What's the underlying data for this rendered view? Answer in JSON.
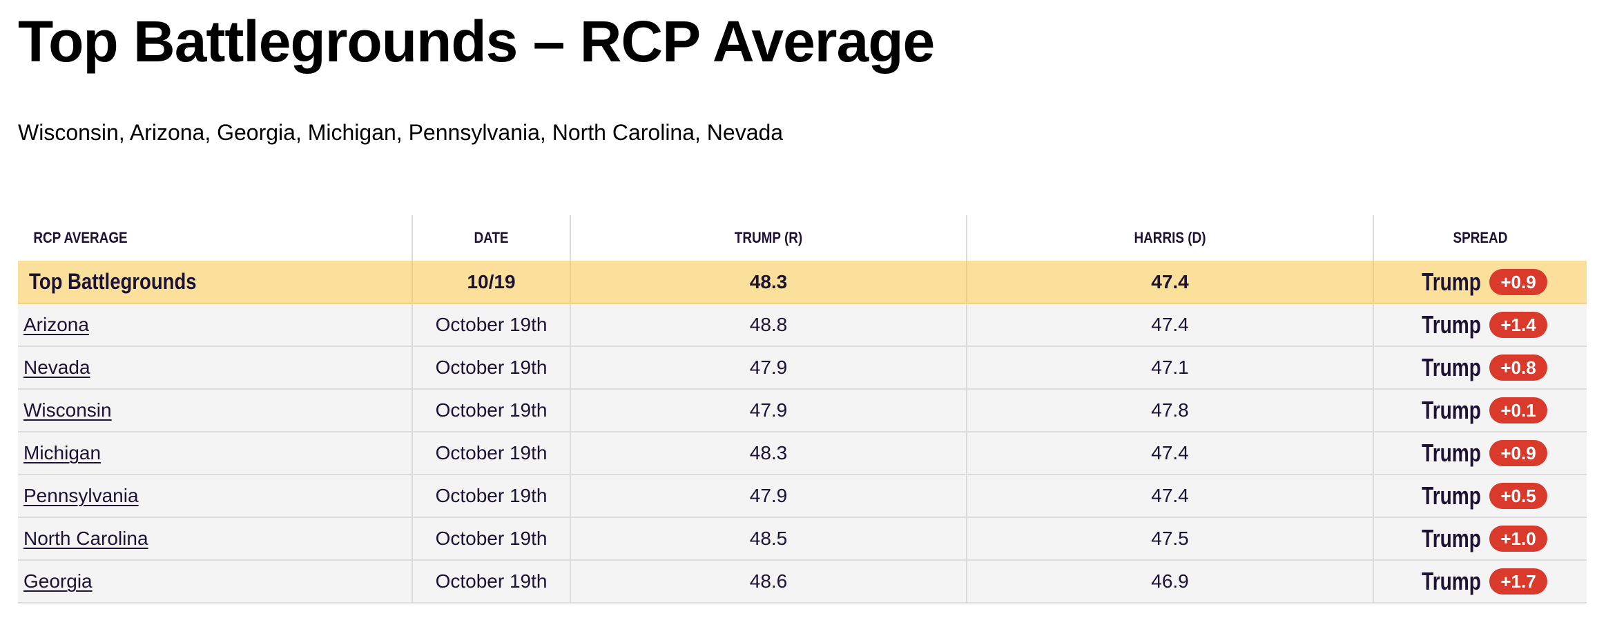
{
  "page": {
    "title": "Top Battlegrounds – RCP Average",
    "subtitle": "Wisconsin, Arizona, Georgia, Michigan, Pennsylvania, North Carolina, Nevada"
  },
  "table": {
    "headers": [
      "RCP AVERAGE",
      "DATE",
      "TRUMP (R)",
      "HARRIS (D)",
      "SPREAD"
    ],
    "average": {
      "label": "Top Battlegrounds",
      "date": "10/19",
      "trump": "48.3",
      "harris": "47.4",
      "spread_leader": "Trump",
      "spread_value": "+0.9"
    },
    "rows": [
      {
        "state": "Arizona",
        "date": "October 19th",
        "trump": "48.8",
        "harris": "47.4",
        "spread_leader": "Trump",
        "spread_value": "+1.4"
      },
      {
        "state": "Nevada",
        "date": "October 19th",
        "trump": "47.9",
        "harris": "47.1",
        "spread_leader": "Trump",
        "spread_value": "+0.8"
      },
      {
        "state": "Wisconsin",
        "date": "October 19th",
        "trump": "47.9",
        "harris": "47.8",
        "spread_leader": "Trump",
        "spread_value": "+0.1"
      },
      {
        "state": "Michigan",
        "date": "October 19th",
        "trump": "48.3",
        "harris": "47.4",
        "spread_leader": "Trump",
        "spread_value": "+0.9"
      },
      {
        "state": "Pennsylvania",
        "date": "October 19th",
        "trump": "47.9",
        "harris": "47.4",
        "spread_leader": "Trump",
        "spread_value": "+0.5"
      },
      {
        "state": "North Carolina",
        "date": "October 19th",
        "trump": "48.5",
        "harris": "47.5",
        "spread_leader": "Trump",
        "spread_value": "+1.0"
      },
      {
        "state": "Georgia",
        "date": "October 19th",
        "trump": "48.6",
        "harris": "46.9",
        "spread_leader": "Trump",
        "spread_value": "+1.7"
      }
    ]
  },
  "colors": {
    "average_row_bg": "#fae09b",
    "row_bg": "#f4f4f4",
    "spread_badge_republican": "#d93a2b",
    "text_dark": "#1c1233"
  }
}
